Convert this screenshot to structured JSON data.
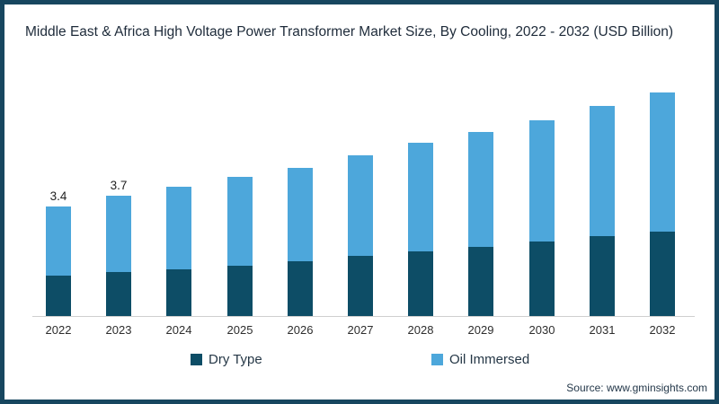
{
  "frame": {
    "border_color": "#17465f",
    "background": "#ffffff",
    "axis_line_color": "#cfcfcf"
  },
  "source": "Source: www.gminsights.com",
  "chart_data": {
    "type": "bar",
    "stacked": true,
    "title": "Middle East & Africa High Voltage Power Transformer Market Size, By Cooling, 2022 - 2032 (USD Billion)",
    "unit": "USD Billion",
    "categories": [
      "2022",
      "2023",
      "2024",
      "2025",
      "2026",
      "2027",
      "2028",
      "2029",
      "2030",
      "2031",
      "2032"
    ],
    "series": [
      {
        "name": "Dry Type",
        "color": "#0d4d66",
        "values": [
          1.25,
          1.35,
          1.45,
          1.55,
          1.7,
          1.85,
          2.0,
          2.15,
          2.3,
          2.47,
          2.6
        ]
      },
      {
        "name": "Oil Immersed",
        "color": "#4da7db",
        "values": [
          2.15,
          2.35,
          2.55,
          2.75,
          2.9,
          3.1,
          3.35,
          3.55,
          3.75,
          4.03,
          4.3
        ]
      }
    ],
    "totals": [
      3.4,
      3.7,
      4.0,
      4.3,
      4.6,
      4.95,
      5.35,
      5.7,
      6.05,
      6.5,
      6.9
    ],
    "bar_labels": [
      "3.4",
      "3.7",
      "",
      "",
      "",
      "",
      "",
      "",
      "",
      "",
      ""
    ],
    "legend_position": "bottom",
    "grid": false,
    "ylim": [
      0,
      7.5
    ]
  }
}
